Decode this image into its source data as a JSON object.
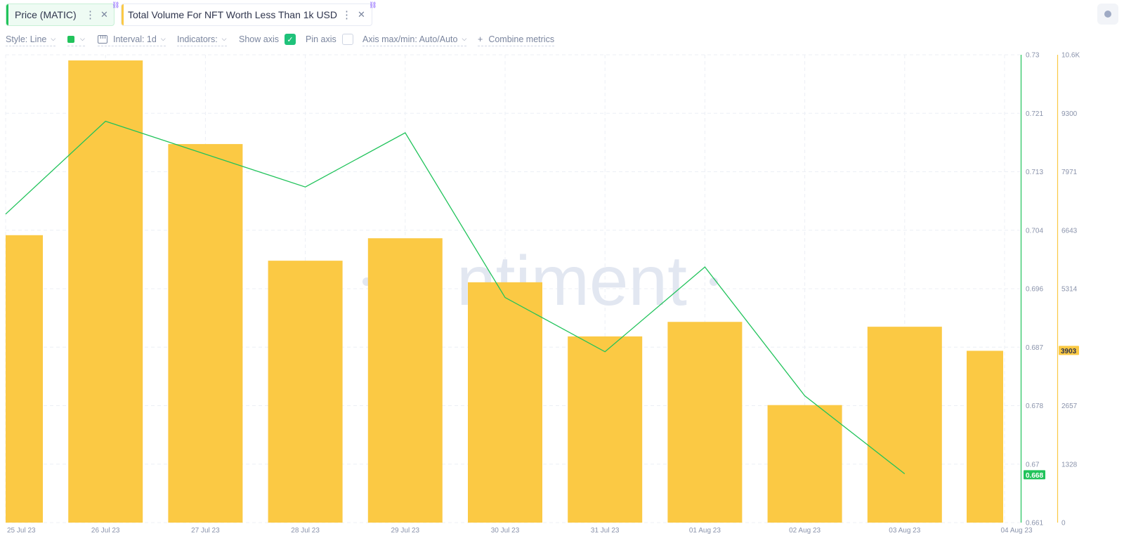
{
  "tabs": [
    {
      "label": "Price (MATIC)",
      "color": "#21c35b"
    },
    {
      "label": "Total Volume For NFT Worth Less Than 1k USD",
      "color": "#fbc944"
    }
  ],
  "toolbar": {
    "style_label": "Style: Line",
    "interval_label": "Interval: 1d",
    "indicators_label": "Indicators:",
    "show_axis_label": "Show axis",
    "show_axis_checked": true,
    "pin_axis_label": "Pin axis",
    "pin_axis_checked": false,
    "axis_maxmin_label": "Axis max/min: Auto/Auto",
    "combine_label": "Combine metrics"
  },
  "watermark": "ntiment",
  "chart_data": {
    "type": "bar",
    "categories": [
      "25 Jul 23",
      "26 Jul 23",
      "27 Jul 23",
      "28 Jul 23",
      "29 Jul 23",
      "30 Jul 23",
      "31 Jul 23",
      "01 Aug 23",
      "02 Aug 23",
      "03 Aug 23",
      "04 Aug 23"
    ],
    "x_tick_labels": [
      "25 Jul 23",
      "26 Jul 23",
      "27 Jul 23",
      "28 Jul 23",
      "29 Jul 23",
      "30 Jul 23",
      "31 Jul 23",
      "01 Aug 23",
      "02 Aug 23",
      "03 Aug 23",
      "04 Aug 23"
    ],
    "series": [
      {
        "name": "Total Volume For NFT Worth Less Than 1k USD",
        "type": "bar",
        "color": "#fbc944",
        "axis": "right-outer",
        "values": [
          6530,
          10500,
          8600,
          5950,
          6460,
          5460,
          4230,
          4560,
          2670,
          4450,
          3903
        ]
      },
      {
        "name": "Price (MATIC)",
        "type": "line",
        "color": "#21c35b",
        "axis": "right-inner",
        "values": [
          0.7065,
          0.7202,
          null,
          0.7105,
          0.7185,
          0.6942,
          0.6862,
          0.6987,
          0.6797,
          0.6682,
          null
        ],
        "values_note_indices": [
          0,
          1,
          3,
          4,
          5,
          6,
          7,
          8,
          9
        ]
      }
    ],
    "price_axis": {
      "ticks": [
        "0.73",
        "0.721",
        "0.713",
        "0.704",
        "0.696",
        "0.687",
        "0.678",
        "0.67",
        "0.661"
      ],
      "ylim": [
        0.661,
        0.73
      ],
      "current_value": "0.668",
      "color": "#21c35b"
    },
    "volume_axis": {
      "ticks": [
        "10.6K",
        "9300",
        "7971",
        "6643",
        "5314",
        "3903",
        "2657",
        "1328",
        "0"
      ],
      "ylim": [
        0,
        10628
      ],
      "current_value": "3903",
      "color": "#fbc944"
    },
    "grid": true,
    "title": "",
    "xlabel": "",
    "ylabel": ""
  }
}
